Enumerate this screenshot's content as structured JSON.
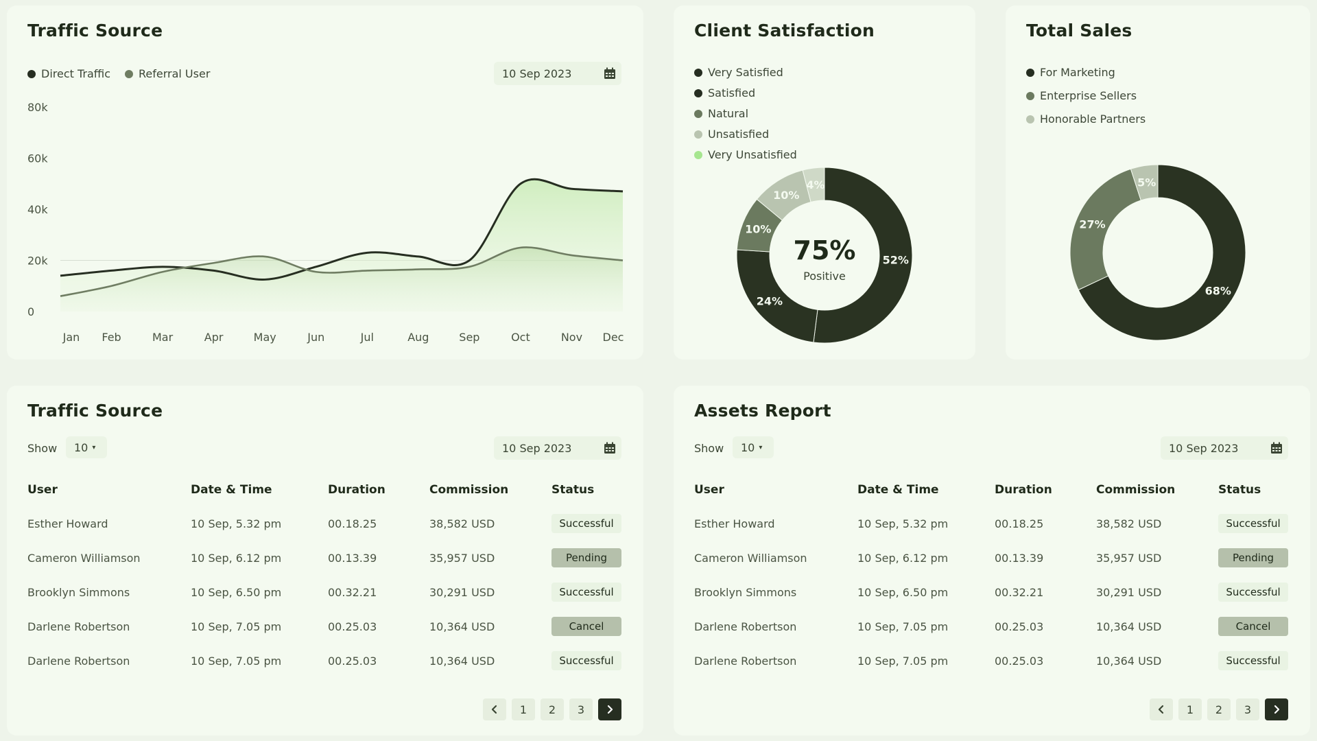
{
  "traffic_chart": {
    "title": "Traffic Source",
    "legend": [
      {
        "label": "Direct Traffic",
        "color": "#262e21"
      },
      {
        "label": "Referral User",
        "color": "#6f7d62"
      }
    ],
    "date": "10 Sep 2023"
  },
  "chart_data": [
    {
      "type": "area",
      "title": "Traffic Source",
      "categories": [
        "Jan",
        "Feb",
        "Mar",
        "Apr",
        "May",
        "Jun",
        "Jul",
        "Aug",
        "Sep",
        "Oct",
        "Nov",
        "Dec"
      ],
      "y_ticks": [
        "80k",
        "60k",
        "40k",
        "20k",
        "0"
      ],
      "ylim": [
        0,
        80000
      ],
      "series": [
        {
          "name": "Direct Traffic",
          "color": "#262e21",
          "values": [
            14000,
            16000,
            17500,
            16000,
            12500,
            17500,
            23000,
            21500,
            20000,
            50000,
            48000,
            47000
          ]
        },
        {
          "name": "Referral User",
          "color": "#6f7d62",
          "values": [
            6000,
            10000,
            15500,
            19000,
            21500,
            15500,
            16000,
            16500,
            17500,
            25000,
            22000,
            20000
          ]
        }
      ],
      "grid": "horizontal line at 20k",
      "legend_position": "top-left"
    },
    {
      "type": "pie",
      "title": "Client Satisfaction",
      "center_value": "75%",
      "center_label": "Positive",
      "series": [
        {
          "name": "Very Satisfied",
          "value": 52,
          "label": "52%",
          "color": "#2a3322"
        },
        {
          "name": "Satisfied",
          "value": 24,
          "label": "24%",
          "color": "#2a3322"
        },
        {
          "name": "Natural",
          "value": 10,
          "label": "10%",
          "color": "#6b7a5f"
        },
        {
          "name": "Unsatisfied",
          "value": 10,
          "label": "10%",
          "color": "#b9c4b0"
        },
        {
          "name": "Very Unsatisfied",
          "value": 4,
          "label": "4%",
          "color": "#cfd9c7"
        }
      ]
    },
    {
      "type": "pie",
      "title": "Total Sales",
      "series": [
        {
          "name": "For Marketing",
          "value": 68,
          "label": "68%",
          "color": "#2a3322"
        },
        {
          "name": "Enterprise Sellers",
          "value": 27,
          "label": "27%",
          "color": "#6b7a5f"
        },
        {
          "name": "Honorable Partners",
          "value": 5,
          "label": "5%",
          "color": "#b9c4b0"
        }
      ]
    }
  ],
  "satisfaction": {
    "title": "Client Satisfaction",
    "legend": [
      {
        "label": "Very Satisfied",
        "color": "#262e21"
      },
      {
        "label": "Satisfied",
        "color": "#262e21"
      },
      {
        "label": "Natural",
        "color": "#6b7a5f"
      },
      {
        "label": "Unsatisfied",
        "color": "#b9c4b0"
      },
      {
        "label": "Very Unsatisfied",
        "color": "#a6e68f"
      }
    ],
    "center_value": "75%",
    "center_label": "Positive"
  },
  "sales": {
    "title": "Total Sales",
    "legend": [
      {
        "label": "For Marketing",
        "color": "#262e21"
      },
      {
        "label": "Enterprise Sellers",
        "color": "#6b7a5f"
      },
      {
        "label": "Honorable Partners",
        "color": "#b9c4b0"
      }
    ]
  },
  "tables": [
    {
      "title": "Traffic Source",
      "show_label": "Show",
      "show_value": "10",
      "date": "10 Sep 2023",
      "columns": [
        "User",
        "Date & Time",
        "Duration",
        "Commission",
        "Status"
      ],
      "rows": [
        [
          "Esther Howard",
          "10 Sep, 5.32 pm",
          "00.18.25",
          "38,582 USD",
          "Successful"
        ],
        [
          "Cameron Williamson",
          "10 Sep, 6.12 pm",
          "00.13.39",
          "35,957 USD",
          "Pending"
        ],
        [
          "Brooklyn Simmons",
          "10 Sep, 6.50 pm",
          "00.32.21",
          "30,291 USD",
          "Successful"
        ],
        [
          "Darlene Robertson",
          "10 Sep, 7.05 pm",
          "00.25.03",
          "10,364 USD",
          "Cancel"
        ],
        [
          "Darlene Robertson",
          "10 Sep, 7.05 pm",
          "00.25.03",
          "10,364 USD",
          "Successful"
        ]
      ],
      "pages": [
        "1",
        "2",
        "3"
      ]
    },
    {
      "title": "Assets Report",
      "show_label": "Show",
      "show_value": "10",
      "date": "10 Sep 2023",
      "columns": [
        "User",
        "Date & Time",
        "Duration",
        "Commission",
        "Status"
      ],
      "rows": [
        [
          "Esther Howard",
          "10 Sep, 5.32 pm",
          "00.18.25",
          "38,582 USD",
          "Successful"
        ],
        [
          "Cameron Williamson",
          "10 Sep, 6.12 pm",
          "00.13.39",
          "35,957 USD",
          "Pending"
        ],
        [
          "Brooklyn Simmons",
          "10 Sep, 6.50 pm",
          "00.32.21",
          "30,291 USD",
          "Successful"
        ],
        [
          "Darlene Robertson",
          "10 Sep, 7.05 pm",
          "00.25.03",
          "10,364 USD",
          "Cancel"
        ],
        [
          "Darlene Robertson",
          "10 Sep, 7.05 pm",
          "00.25.03",
          "10,364 USD",
          "Successful"
        ]
      ],
      "pages": [
        "1",
        "2",
        "3"
      ]
    }
  ]
}
